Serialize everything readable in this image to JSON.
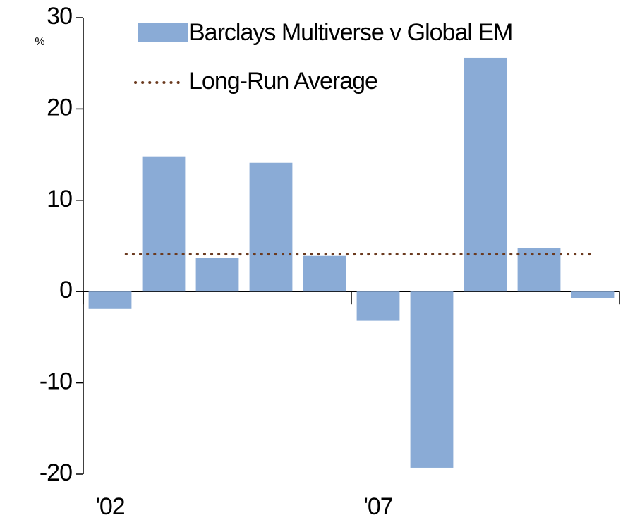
{
  "chart_data": {
    "type": "bar",
    "y_unit": "%",
    "categories": [
      "'02",
      null,
      null,
      null,
      null,
      "'07",
      null,
      null,
      null,
      null
    ],
    "series": [
      {
        "name": "Barclays Multiverse v Global EM",
        "color": "#8aabd6",
        "values": [
          -1.9,
          14.8,
          3.7,
          14.1,
          3.9,
          -3.2,
          -19.3,
          25.6,
          4.8,
          -0.7
        ]
      }
    ],
    "average": {
      "name": "Long-Run Average",
      "value": 4.1,
      "color": "#6b3a1f"
    },
    "ylim": [
      -20,
      30
    ],
    "yticks": [
      -20,
      -10,
      0,
      10,
      20,
      30
    ],
    "grid": false
  }
}
